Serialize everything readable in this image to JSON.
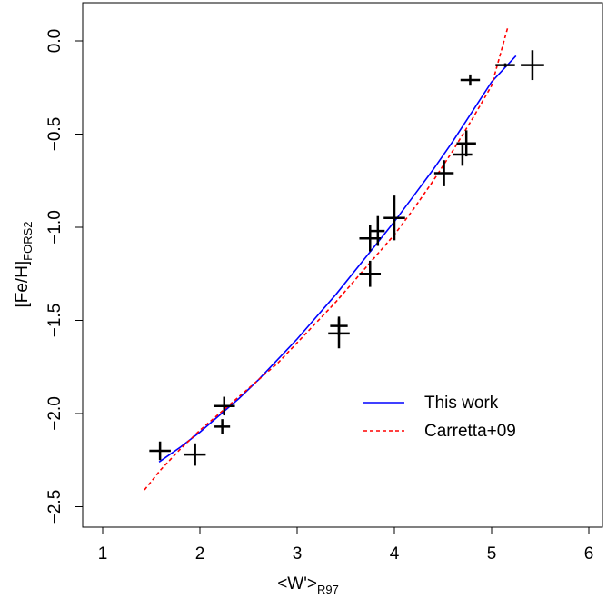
{
  "chart_data": {
    "type": "scatter",
    "xlabel": "<W'>",
    "xlabel_sub": "R97",
    "ylabel": "[Fe/H]",
    "ylabel_sub": "FORS2",
    "xlim": [
      0.8,
      6.2
    ],
    "ylim": [
      -2.6,
      0.2
    ],
    "x_ticks": [
      1,
      2,
      3,
      4,
      5,
      6
    ],
    "x_tick_labels": [
      "1",
      "2",
      "3",
      "4",
      "5",
      "6"
    ],
    "y_ticks": [
      -2.5,
      -2.0,
      -1.5,
      -1.0,
      -0.5,
      0.0
    ],
    "y_tick_labels": [
      "−2.5",
      "−2.0",
      "−1.5",
      "−1.0",
      "−0.5",
      "0.0"
    ],
    "grid": false,
    "legend_position": "bottom-right",
    "points": [
      {
        "x": 1.59,
        "y": -2.2,
        "xerr": 0.11,
        "yerr": 0.05
      },
      {
        "x": 1.95,
        "y": -2.22,
        "xerr": 0.11,
        "yerr": 0.06
      },
      {
        "x": 2.23,
        "y": -2.07,
        "xerr": 0.08,
        "yerr": 0.04
      },
      {
        "x": 2.25,
        "y": -1.96,
        "xerr": 0.11,
        "yerr": 0.05
      },
      {
        "x": 3.43,
        "y": -1.53,
        "xerr": 0.09,
        "yerr": 0.05
      },
      {
        "x": 3.43,
        "y": -1.57,
        "xerr": 0.11,
        "yerr": 0.08
      },
      {
        "x": 3.75,
        "y": -1.25,
        "xerr": 0.11,
        "yerr": 0.07
      },
      {
        "x": 3.75,
        "y": -1.06,
        "xerr": 0.11,
        "yerr": 0.07
      },
      {
        "x": 3.83,
        "y": -1.02,
        "xerr": 0.07,
        "yerr": 0.08
      },
      {
        "x": 4.0,
        "y": -0.95,
        "xerr": 0.11,
        "yerr": 0.12
      },
      {
        "x": 4.51,
        "y": -0.71,
        "xerr": 0.1,
        "yerr": 0.07
      },
      {
        "x": 4.7,
        "y": -0.61,
        "xerr": 0.1,
        "yerr": 0.06
      },
      {
        "x": 4.74,
        "y": -0.55,
        "xerr": 0.1,
        "yerr": 0.07
      },
      {
        "x": 4.78,
        "y": -0.21,
        "xerr": 0.1,
        "yerr": 0.03
      },
      {
        "x": 5.14,
        "y": -0.13,
        "xerr": 0.1,
        "yerr": 0.01
      },
      {
        "x": 5.42,
        "y": -0.13,
        "xerr": 0.12,
        "yerr": 0.08
      }
    ],
    "series": [
      {
        "name": "This work",
        "color": "#0000ff",
        "style": "solid",
        "x": [
          1.58,
          1.8,
          2.0,
          2.2,
          2.4,
          2.6,
          2.8,
          3.0,
          3.2,
          3.4,
          3.6,
          3.8,
          4.0,
          4.2,
          4.4,
          4.6,
          4.8,
          5.0,
          5.25
        ],
        "y": [
          -2.26,
          -2.18,
          -2.1,
          -2.01,
          -1.92,
          -1.82,
          -1.71,
          -1.6,
          -1.48,
          -1.36,
          -1.23,
          -1.1,
          -0.97,
          -0.83,
          -0.69,
          -0.54,
          -0.38,
          -0.22,
          -0.08
        ]
      },
      {
        "name": "Carretta+09",
        "color": "#ff0000",
        "style": "dashed",
        "x": [
          1.43,
          1.6,
          1.8,
          2.0,
          2.2,
          2.4,
          2.6,
          2.8,
          3.0,
          3.2,
          3.4,
          3.6,
          3.8,
          4.0,
          4.2,
          4.4,
          4.6,
          4.8,
          5.0,
          5.17
        ],
        "y": [
          -2.41,
          -2.3,
          -2.19,
          -2.09,
          -2.0,
          -1.91,
          -1.82,
          -1.73,
          -1.62,
          -1.51,
          -1.4,
          -1.28,
          -1.16,
          -1.04,
          -0.9,
          -0.75,
          -0.59,
          -0.42,
          -0.24,
          0.08
        ]
      }
    ]
  }
}
